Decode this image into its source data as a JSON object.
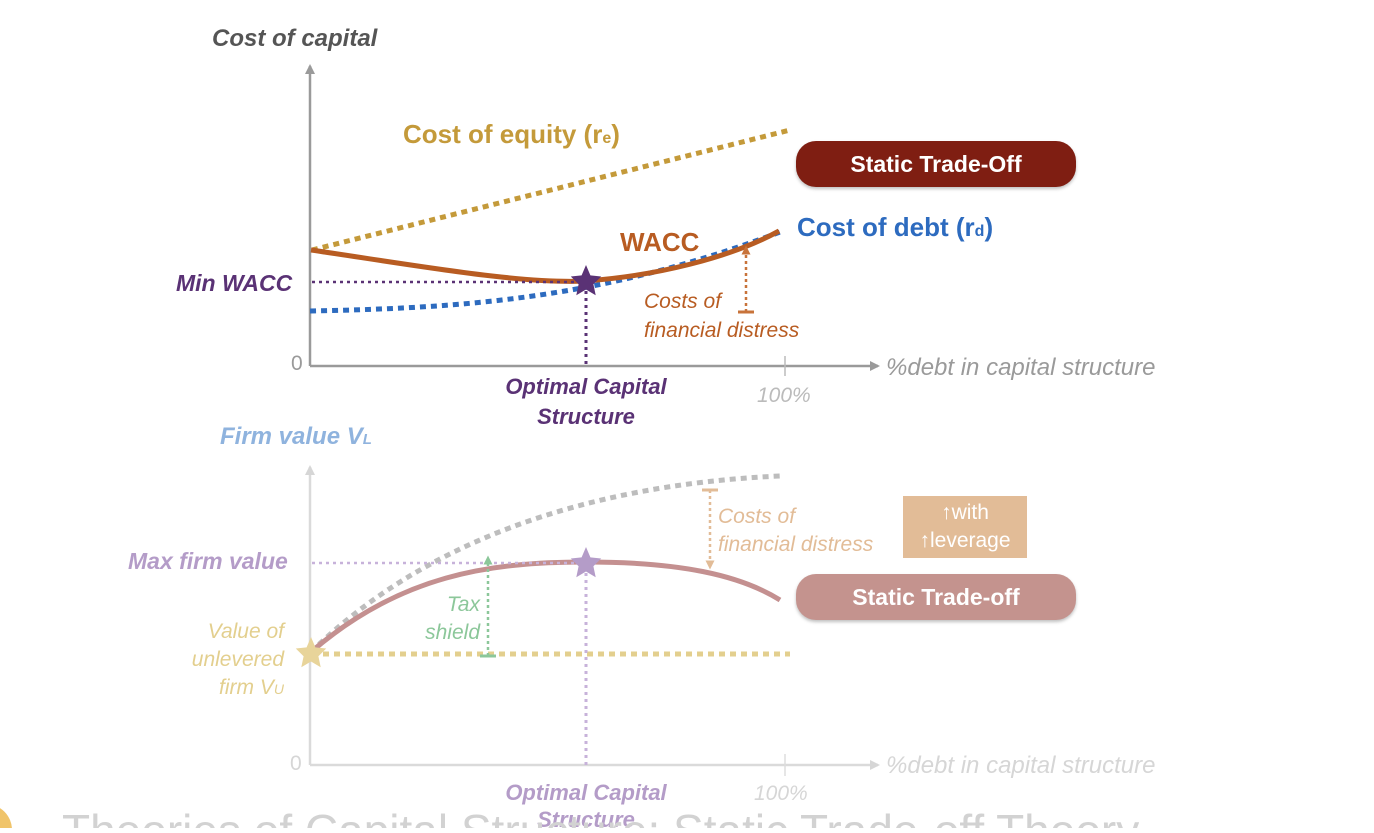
{
  "top": {
    "y_axis_label": "Cost of capital",
    "x_axis_label": "%debt in capital structure",
    "origin_label": "0",
    "tick_100_label": "100%",
    "equity_label_text": "Cost of equity (r",
    "equity_label_sub": "e",
    "equity_label_close": ")",
    "debt_label_text": "Cost of debt (r",
    "debt_label_sub": "d",
    "debt_label_close": ")",
    "wacc_label": "WACC",
    "min_wacc_label": "Min WACC",
    "distress_line1": "Costs of",
    "distress_line2": "financial distress",
    "optimal_line1": "Optimal Capital",
    "optimal_line2": "Structure",
    "pill_label": "Static Trade-Off",
    "colors": {
      "equity": "#C49A3A",
      "debt": "#2D6BBF",
      "wacc": "#B85C22",
      "optimal": "#5A3275",
      "pill": "#7F1E12",
      "axis": "#9a9a9a"
    }
  },
  "bottom": {
    "y_axis_label_main": "Firm value V",
    "y_axis_label_sub": "L",
    "x_axis_label": "%debt in capital structure",
    "origin_label": "0",
    "tick_100_label": "100%",
    "max_value_label": "Max firm value",
    "unlevered_line1": "Value of",
    "unlevered_line2": "unlevered",
    "unlevered_line3_main": "firm V",
    "unlevered_line3_sub": "U",
    "tax_line1": "Tax",
    "tax_line2": "shield",
    "distress_line1": "Costs of",
    "distress_line2": "financial distress",
    "box_line1": "↑with",
    "box_line2": "↑leverage",
    "optimal_line1": "Optimal Capital",
    "optimal_line2": "Structure",
    "pill_label": "Static Trade-off",
    "colors": {
      "unlevered": "#E3CF8E",
      "tax": "#8CC79A",
      "curve": "#C49090",
      "optimal": "#B49CC8",
      "pill": "#C4938E",
      "axis_label": "#8FB3DE",
      "box": "#E2BC97"
    }
  },
  "footer_partial_text": "Theories of Capital Structure: Static Trade-off Theory"
}
